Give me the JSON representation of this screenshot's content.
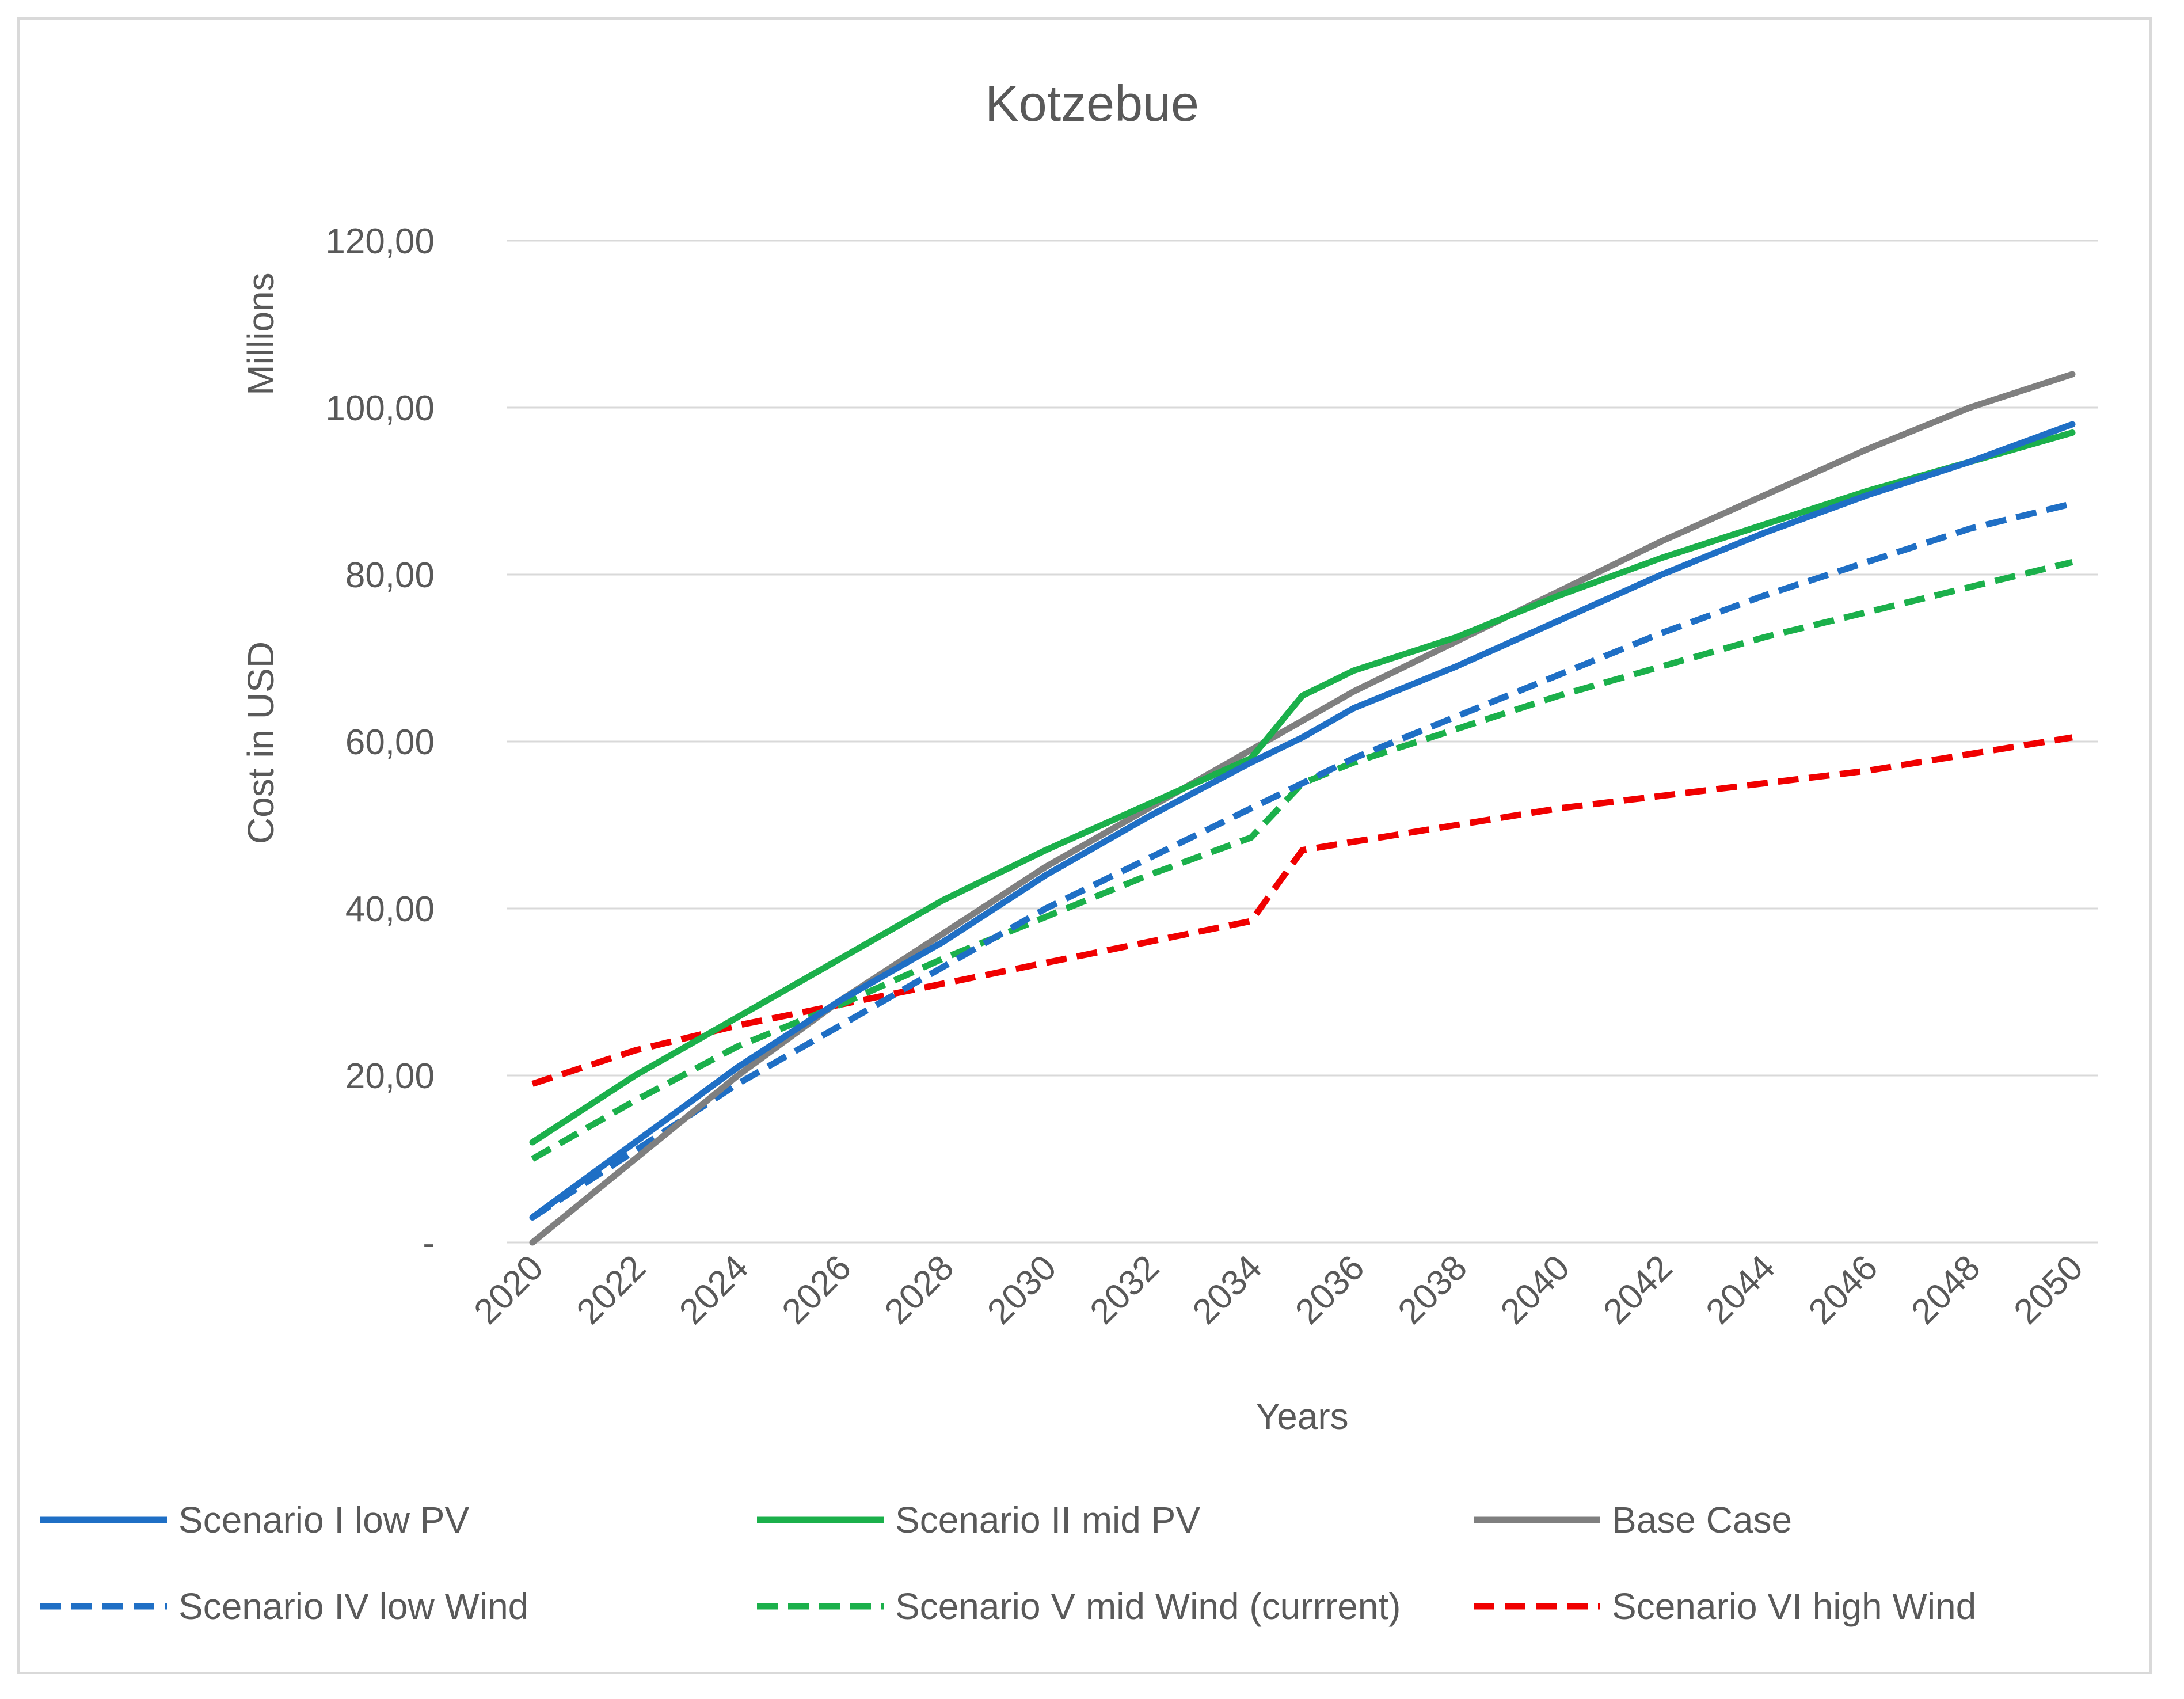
{
  "chart_data": {
    "type": "line",
    "title": "Kotzebue",
    "xlabel": "Years",
    "ylabel": "Cost in USD",
    "y_unit_label": "Millions",
    "ylim": [
      0,
      120
    ],
    "xlim": [
      2020,
      2050
    ],
    "y_ticks": [
      {
        "value": 0,
        "label": "-"
      },
      {
        "value": 20,
        "label": "20,00"
      },
      {
        "value": 40,
        "label": "40,00"
      },
      {
        "value": 60,
        "label": "60,00"
      },
      {
        "value": 80,
        "label": "80,00"
      },
      {
        "value": 100,
        "label": "100,00"
      },
      {
        "value": 120,
        "label": "120,00"
      }
    ],
    "x_ticks": [
      "2020",
      "2022",
      "2024",
      "2026",
      "2028",
      "2030",
      "2032",
      "2034",
      "2036",
      "2038",
      "2040",
      "2042",
      "2044",
      "2046",
      "2048",
      "2050"
    ],
    "grid": true,
    "legend_position": "bottom",
    "x": [
      2020,
      2022,
      2024,
      2026,
      2028,
      2030,
      2032,
      2034,
      2035,
      2036,
      2038,
      2040,
      2042,
      2044,
      2046,
      2048,
      2050
    ],
    "series": [
      {
        "name": "Scenario I low PV",
        "color": "#1f6fc5",
        "style": "solid",
        "values": [
          3,
          12,
          21,
          29,
          36,
          44,
          51,
          57.5,
          60.5,
          64,
          69,
          74.5,
          80,
          85,
          89.5,
          93.5,
          98
        ]
      },
      {
        "name": "Scenario II mid PV",
        "color": "#1bb04b",
        "style": "solid",
        "values": [
          12,
          20,
          27,
          34,
          41,
          47,
          52.5,
          58,
          65.5,
          68.5,
          72.5,
          77.5,
          82,
          86,
          90,
          93.5,
          97
        ]
      },
      {
        "name": "Base Case",
        "color": "#7f7f7f",
        "style": "solid",
        "values": [
          0,
          10,
          20,
          29,
          37,
          45,
          52,
          59,
          62.5,
          66,
          72,
          78,
          84,
          89.5,
          95,
          100,
          104
        ]
      },
      {
        "name": "Scenario IV low Wind",
        "color": "#1f6fc5",
        "style": "dashed",
        "values": [
          3,
          11,
          19,
          26,
          33,
          40,
          46,
          52,
          55,
          58,
          63,
          68,
          73,
          77.5,
          81.5,
          85.5,
          88.5
        ]
      },
      {
        "name": "Scenario V mid Wind (currrent)",
        "color": "#1bb04b",
        "style": "dashed",
        "values": [
          10,
          17,
          23.5,
          28.5,
          34,
          39,
          44,
          48.5,
          55,
          57.5,
          61.5,
          65.5,
          69,
          72.5,
          75.5,
          78.5,
          81.5
        ]
      },
      {
        "name": "Scenario VI high Wind",
        "color": "#f00000",
        "style": "dashed",
        "values": [
          19,
          23,
          26,
          28.5,
          31,
          33.5,
          36,
          38.5,
          47,
          48,
          50,
          52,
          53.5,
          55,
          56.5,
          58.5,
          60.5
        ]
      }
    ]
  }
}
